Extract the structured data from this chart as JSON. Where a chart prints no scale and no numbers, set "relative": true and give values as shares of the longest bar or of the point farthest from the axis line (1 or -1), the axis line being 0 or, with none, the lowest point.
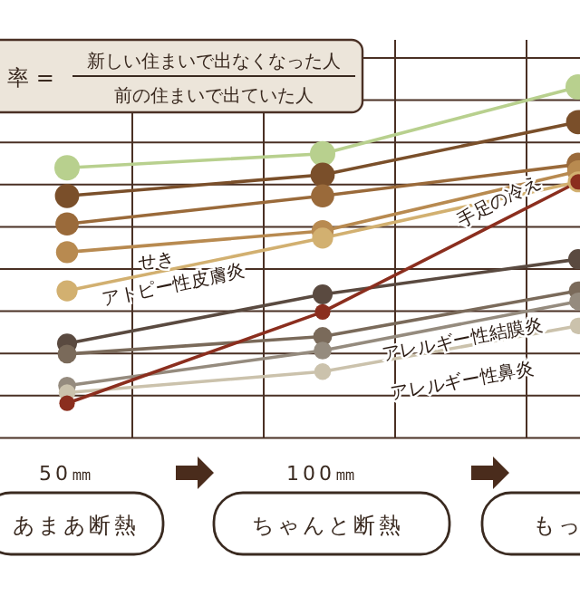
{
  "chart_data": {
    "type": "line",
    "title": "率 =",
    "subtitle": "新しい住まいで出なくなった人",
    "annotations": [
      "前の住まいで出ていた人",
      "あまあ断熱",
      "ちゃんと断熱",
      "もっ"
    ],
    "categories": [
      "50㎜",
      "100㎜",
      null
    ],
    "relative": true,
    "grid": true,
    "marker": "circle",
    "series": [
      {
        "color": "#b8d08e",
        "values": [
          0.77,
          0.81,
          1
        ]
      },
      {
        "color": "#7a4f2a",
        "values": [
          0.69,
          0.75,
          0.9
        ]
      },
      {
        "color": "#9a6a3a",
        "values": [
          0.61,
          0.69,
          0.78
        ]
      },
      {
        "name": "せき",
        "color": "#b88a50",
        "values": [
          0.53,
          0.59,
          0.76
        ]
      },
      {
        "name": "アトピー性皮膚炎",
        "color": "#d2b070",
        "values": [
          0.42,
          0.57,
          0.73
        ]
      },
      {
        "color": "#5a4a40",
        "values": [
          0.27,
          0.41,
          0.51
        ]
      },
      {
        "color": "#7a6a5a",
        "values": [
          0.24,
          0.29,
          0.42
        ]
      },
      {
        "name": "アレルギー性結膜炎",
        "color": "#958b7e",
        "values": [
          0.15,
          0.25,
          0.39
        ]
      },
      {
        "name": "アレルギー性鼻炎",
        "color": "#cbc2ac",
        "values": [
          0.13,
          0.19,
          0.32
        ]
      },
      {
        "name": "手足の冷え",
        "color": "#8b2e1e",
        "values": [
          0.1,
          0.36,
          0.73
        ]
      }
    ]
  }
}
